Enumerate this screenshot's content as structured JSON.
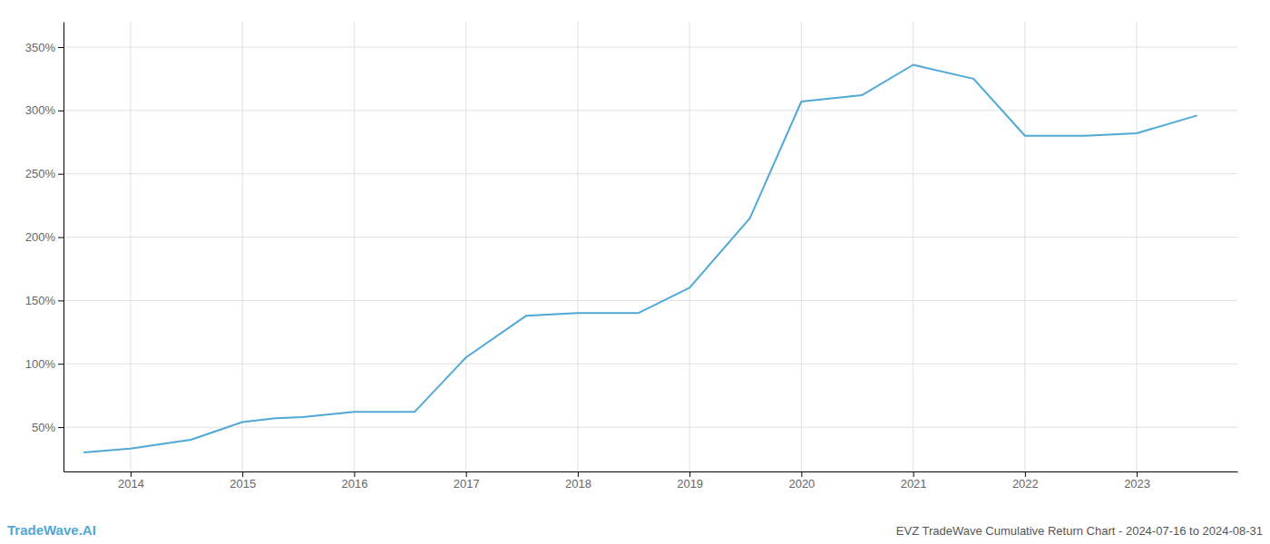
{
  "chart_data": {
    "type": "line",
    "title": "EVZ TradeWave Cumulative Return Chart - 2024-07-16 to 2024-08-31",
    "annotations": [
      "TradeWave.AI"
    ],
    "color": "#4fa8d5",
    "x": [
      2013.58,
      2014.0,
      2014.54,
      2015.0,
      2015.3,
      2015.54,
      2016.0,
      2016.54,
      2017.0,
      2017.54,
      2018.0,
      2018.54,
      2019.0,
      2019.54,
      2020.0,
      2020.54,
      2021.0,
      2021.54,
      2022.0,
      2022.54,
      2023.0,
      2023.54
    ],
    "values": [
      30,
      33,
      40,
      54,
      57,
      58,
      62,
      62,
      105,
      138,
      140,
      140,
      160,
      215,
      307,
      312,
      336,
      325,
      280,
      280,
      282,
      296
    ],
    "xlim": [
      2013.4,
      2023.9
    ],
    "ylim": [
      15,
      370
    ],
    "xticks": [
      2014,
      2015,
      2016,
      2017,
      2018,
      2019,
      2020,
      2021,
      2022,
      2023
    ],
    "yticks": [
      {
        "value": 50,
        "label": "50%"
      },
      {
        "value": 100,
        "label": "100%"
      },
      {
        "value": 150,
        "label": "150%"
      },
      {
        "value": 200,
        "label": "200%"
      },
      {
        "value": 250,
        "label": "250%"
      },
      {
        "value": 300,
        "label": "300%"
      },
      {
        "value": 350,
        "label": "350%"
      }
    ],
    "grid": true
  }
}
